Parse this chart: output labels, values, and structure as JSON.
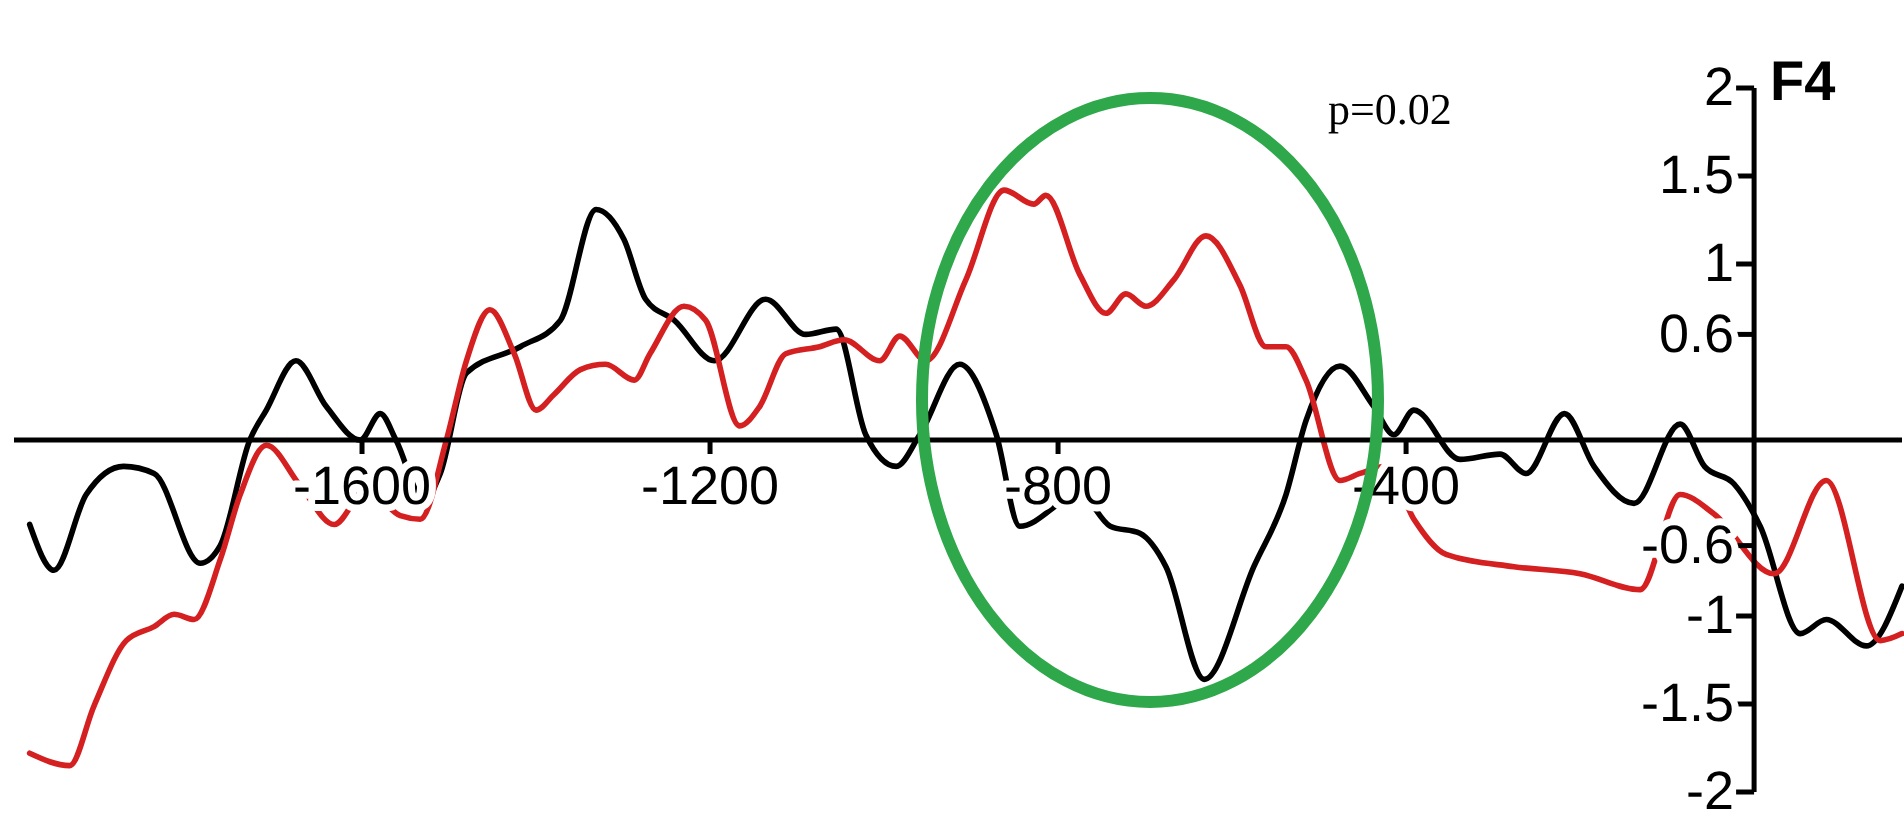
{
  "chart_data": {
    "type": "line",
    "title": "F4",
    "annotations": [
      "p=0.02"
    ],
    "xlim": [
      -2000,
      170
    ],
    "xticks": [
      -1600,
      -1200,
      -800,
      -400
    ],
    "ylim": [
      -2,
      2
    ],
    "yticks": [
      2,
      1.5,
      1,
      0.6,
      -0.6,
      -1,
      -1.5,
      -2
    ],
    "grid": false,
    "marker": "none",
    "line_style": "solid",
    "series": [
      {
        "color": "#000000",
        "x": [
          -1982,
          -1954,
          -1917,
          -1874,
          -1839,
          -1786,
          -1763,
          -1729,
          -1710,
          -1676,
          -1641,
          -1602,
          -1579,
          -1561,
          -1529,
          -1510,
          -1480,
          -1418,
          -1372,
          -1331,
          -1299,
          -1274,
          -1241,
          -1195,
          -1136,
          -1090,
          -1055,
          -1021,
          -986,
          -959,
          -913,
          -871,
          -844,
          -775,
          -740,
          -706,
          -676,
          -632,
          -575,
          -538,
          -515,
          -476,
          -437,
          -414,
          -391,
          -338,
          -292,
          -262,
          -218,
          -184,
          -138,
          -85,
          -57,
          -23,
          7,
          53,
          83,
          129,
          170
        ],
        "values": [
          -0.48,
          -0.74,
          -0.31,
          -0.15,
          -0.19,
          -0.7,
          -0.6,
          0,
          0.17,
          0.45,
          0.19,
          0,
          0.15,
          0,
          -0.34,
          -0.19,
          0.38,
          0.53,
          0.68,
          1.31,
          1.14,
          0.8,
          0.68,
          0.45,
          0.8,
          0.6,
          0.63,
          0.03,
          -0.15,
          0.03,
          0.43,
          0.03,
          -0.49,
          -0.31,
          -0.49,
          -0.53,
          -0.72,
          -1.36,
          -0.72,
          -0.31,
          0.11,
          0.42,
          0.19,
          0.03,
          0.17,
          -0.11,
          -0.08,
          -0.19,
          0.15,
          -0.15,
          -0.36,
          0.09,
          -0.15,
          -0.25,
          -0.49,
          -1.1,
          -1.02,
          -1.17,
          -0.83
        ]
      },
      {
        "color": "#d42020",
        "x": [
          -1982,
          -1936,
          -1908,
          -1871,
          -1839,
          -1816,
          -1793,
          -1763,
          -1740,
          -1710,
          -1671,
          -1632,
          -1595,
          -1556,
          -1533,
          -1503,
          -1480,
          -1453,
          -1425,
          -1400,
          -1379,
          -1349,
          -1320,
          -1287,
          -1269,
          -1230,
          -1205,
          -1166,
          -1143,
          -1113,
          -1074,
          -1046,
          -1005,
          -982,
          -952,
          -906,
          -862,
          -828,
          -814,
          -775,
          -745,
          -722,
          -699,
          -667,
          -630,
          -591,
          -561,
          -538,
          -515,
          -476,
          -453,
          -423,
          -391,
          -354,
          -276,
          -200,
          -131,
          -85,
          -46,
          23,
          83,
          145,
          170
        ],
        "values": [
          -1.78,
          -1.85,
          -1.51,
          -1.14,
          -1.06,
          -0.99,
          -1.02,
          -0.68,
          -0.31,
          -0.03,
          -0.26,
          -0.48,
          -0.28,
          -0.43,
          -0.45,
          0,
          0.45,
          0.74,
          0.49,
          0.17,
          0.26,
          0.4,
          0.43,
          0.34,
          0.49,
          0.76,
          0.68,
          0.08,
          0.19,
          0.49,
          0.53,
          0.57,
          0.45,
          0.59,
          0.45,
          0.91,
          1.42,
          1.34,
          1.39,
          0.94,
          0.72,
          0.83,
          0.76,
          0.91,
          1.16,
          0.88,
          0.53,
          0.53,
          0.34,
          -0.23,
          -0.19,
          -0.15,
          -0.45,
          -0.65,
          -0.72,
          -0.76,
          -0.85,
          -0.31,
          -0.42,
          -0.76,
          -0.23,
          -1.14,
          -1.1
        ]
      }
    ]
  }
}
